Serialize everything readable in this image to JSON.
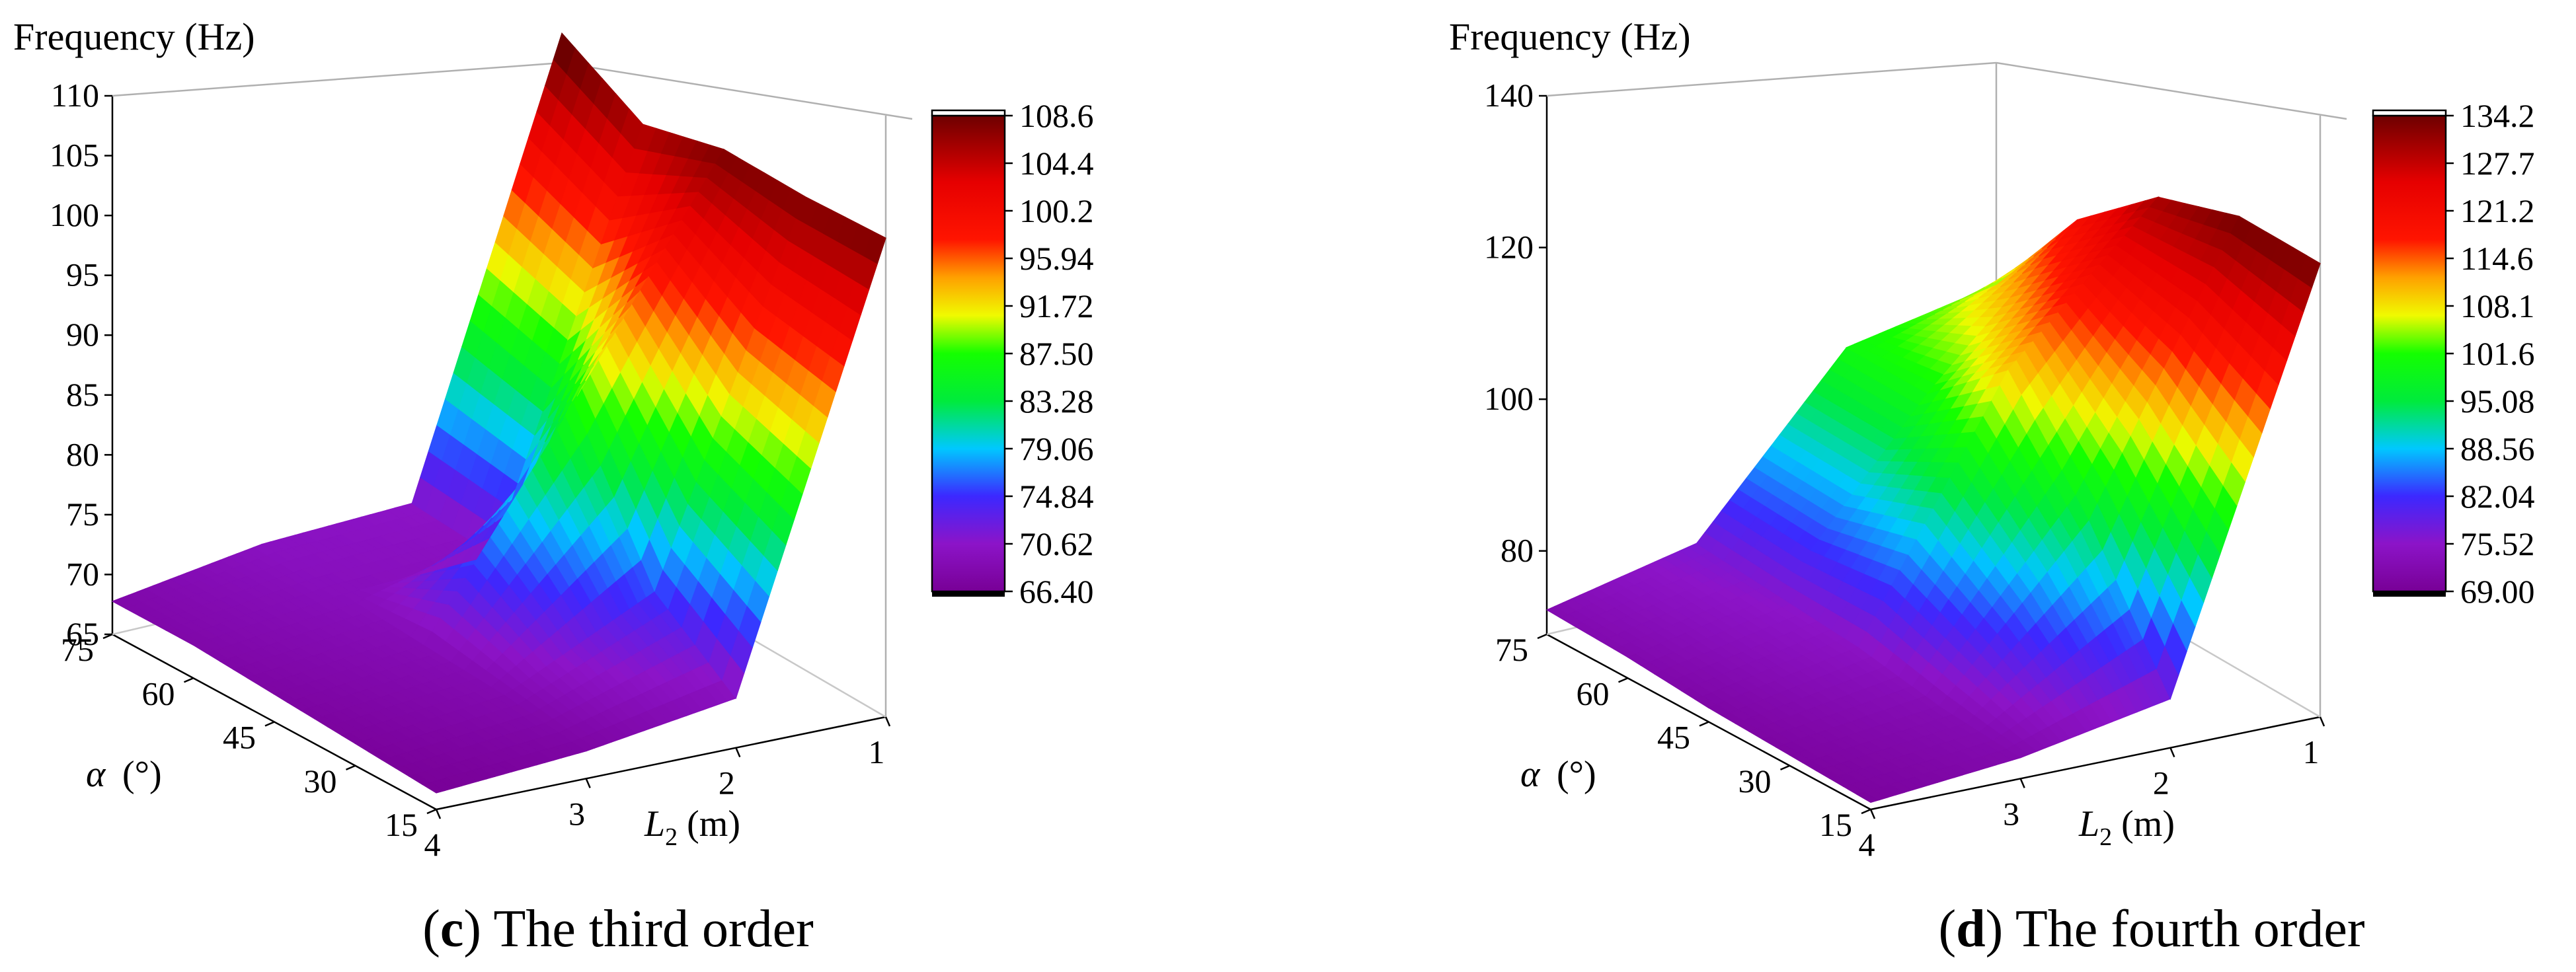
{
  "chart_data": [
    {
      "type": "surface3d",
      "panel_letter": "c",
      "caption": "The third order",
      "zlabel": "Frequency (Hz)",
      "z_ticks": [
        "65",
        "70",
        "75",
        "80",
        "85",
        "90",
        "95",
        "100",
        "105",
        "110"
      ],
      "zlim": [
        65,
        110
      ],
      "alpha_label": "α (°)",
      "alpha_ticks": [
        "75",
        "60",
        "45",
        "30",
        "15"
      ],
      "l2_label": "L2 (m)",
      "l2_sub": "2",
      "l2_ticks": [
        "4",
        "3",
        "2",
        "1"
      ],
      "alpha_values": [
        15,
        30,
        45,
        60,
        75
      ],
      "l2_values": [
        4,
        3,
        2,
        1
      ],
      "z_grid": [
        [
          66.5,
          67.5,
          69.5,
          108.5
        ],
        [
          67.0,
          68.5,
          75.0,
          108.0
        ],
        [
          67.5,
          69.0,
          88.0,
          108.0
        ],
        [
          68.0,
          69.5,
          70.0,
          106.0
        ],
        [
          68.0,
          70.0,
          70.5,
          110.0
        ]
      ],
      "colorbar": {
        "min": 66.4,
        "max": 108.6,
        "labels": [
          "108.6",
          "104.4",
          "100.2",
          "95.94",
          "91.72",
          "87.50",
          "83.28",
          "79.06",
          "74.84",
          "70.62",
          "66.40"
        ]
      }
    },
    {
      "type": "surface3d",
      "panel_letter": "d",
      "caption": "The fourth order",
      "zlabel": "Frequency (Hz)",
      "z_ticks": [
        "80",
        "100",
        "120",
        "140"
      ],
      "zlim": [
        69,
        140
      ],
      "alpha_label": "α (°)",
      "alpha_ticks": [
        "75",
        "60",
        "45",
        "30",
        "15"
      ],
      "l2_label": "L2 (m)",
      "l2_sub": "2",
      "l2_ticks": [
        "4",
        "3",
        "2",
        "1"
      ],
      "alpha_values": [
        15,
        30,
        45,
        60,
        75
      ],
      "l2_values": [
        4,
        3,
        2,
        1
      ],
      "z_grid": [
        [
          70.0,
          72.0,
          76.0,
          134.0
        ],
        [
          70.5,
          73.0,
          95.0,
          134.0
        ],
        [
          71.0,
          75.0,
          110.0,
          130.0
        ],
        [
          72.0,
          76.0,
          100.0,
          120.0
        ],
        [
          72.5,
          77.0,
          100.0,
          104.0
        ]
      ],
      "colorbar": {
        "min": 69.0,
        "max": 134.2,
        "labels": [
          "134.2",
          "127.7",
          "121.2",
          "114.6",
          "108.1",
          "101.6",
          "95.08",
          "88.56",
          "82.04",
          "75.52",
          "69.00"
        ]
      }
    }
  ]
}
